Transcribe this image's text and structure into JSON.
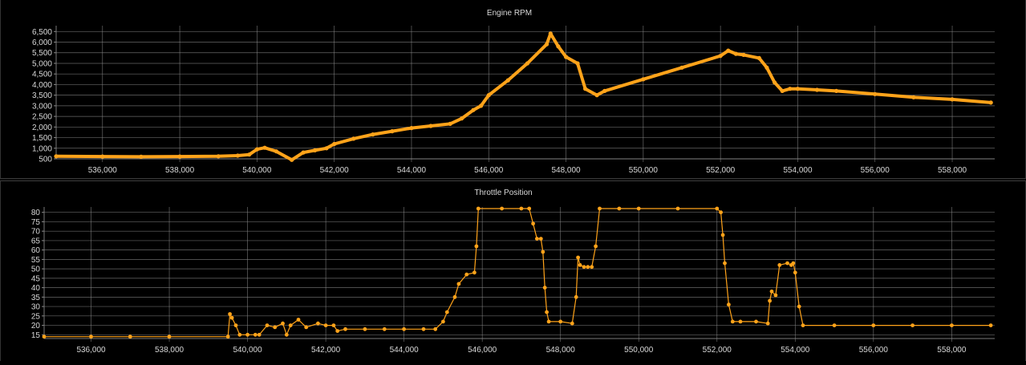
{
  "colors": {
    "background": "#000000",
    "grid": "#8a8a8a",
    "axis_text": "#d8d8d8",
    "series": "#ffa31a"
  },
  "chart_data": [
    {
      "type": "line",
      "title": "Engine RPM",
      "xlabel": "",
      "ylabel": "",
      "xlim": [
        534800,
        559100
      ],
      "ylim": [
        500,
        6700
      ],
      "grid": true,
      "x_ticks": [
        536000,
        538000,
        540000,
        542000,
        544000,
        546000,
        548000,
        550000,
        552000,
        554000,
        556000,
        558000
      ],
      "x_tick_labels": [
        "536,000",
        "538,000",
        "540,000",
        "542,000",
        "544,000",
        "546,000",
        "548,000",
        "550,000",
        "552,000",
        "554,000",
        "556,000",
        "558,000"
      ],
      "y_ticks": [
        500,
        1000,
        1500,
        2000,
        2500,
        3000,
        3500,
        4000,
        4500,
        5000,
        5500,
        6000,
        6500
      ],
      "y_tick_labels": [
        "500",
        "1,000",
        "1,500",
        "2,000",
        "2,500",
        "3,000",
        "3,500",
        "4,000",
        "4,500",
        "5,000",
        "5,500",
        "6,000",
        "6,500"
      ],
      "series": [
        {
          "x": [
            534800,
            536000,
            537000,
            538000,
            539000,
            539500,
            539800,
            540000,
            540200,
            540500,
            540900,
            541200,
            541500,
            541800,
            542000,
            542500,
            543000,
            543500,
            544000,
            544500,
            545000,
            545300,
            545600,
            545800,
            546000,
            546500,
            547000,
            547500,
            547600,
            547800,
            548000,
            548300,
            548500,
            548800,
            549000,
            550000,
            551000,
            552000,
            552200,
            552400,
            552600,
            553000,
            553200,
            553400,
            553600,
            553800,
            554000,
            554500,
            555000,
            556000,
            557000,
            558000,
            559000
          ],
          "y": [
            620,
            610,
            600,
            610,
            620,
            650,
            700,
            950,
            1020,
            850,
            450,
            800,
            900,
            1000,
            1200,
            1450,
            1650,
            1800,
            1950,
            2050,
            2150,
            2400,
            2800,
            3000,
            3500,
            4200,
            5000,
            5900,
            6400,
            5800,
            5300,
            5000,
            3800,
            3500,
            3700,
            4250,
            4800,
            5350,
            5600,
            5450,
            5400,
            5250,
            4800,
            4100,
            3700,
            3800,
            3800,
            3750,
            3700,
            3550,
            3400,
            3300,
            3150
          ]
        }
      ]
    },
    {
      "type": "line",
      "title": "Throttle Position",
      "xlabel": "",
      "ylabel": "",
      "xlim": [
        534800,
        559100
      ],
      "ylim": [
        13,
        82
      ],
      "grid": true,
      "x_ticks": [
        536000,
        538000,
        540000,
        542000,
        544000,
        546000,
        548000,
        550000,
        552000,
        554000,
        556000,
        558000
      ],
      "x_tick_labels": [
        "536,000",
        "538,000",
        "540,000",
        "542,000",
        "544,000",
        "546,000",
        "548,000",
        "550,000",
        "552,000",
        "554,000",
        "556,000",
        "558,000"
      ],
      "y_ticks": [
        15,
        20,
        25,
        30,
        35,
        40,
        45,
        50,
        55,
        60,
        65,
        70,
        75,
        80
      ],
      "y_tick_labels": [
        "15",
        "20",
        "25",
        "30",
        "35",
        "40",
        "45",
        "50",
        "55",
        "60",
        "65",
        "70",
        "75",
        "80"
      ],
      "series": [
        {
          "x": [
            534800,
            536000,
            537000,
            538000,
            539500,
            539550,
            539600,
            539700,
            539800,
            540000,
            540200,
            540300,
            540500,
            540700,
            540900,
            541000,
            541100,
            541300,
            541500,
            541800,
            542000,
            542200,
            542300,
            542500,
            543000,
            543500,
            544000,
            544500,
            544800,
            545000,
            545100,
            545300,
            545400,
            545600,
            545800,
            545850,
            545900,
            546500,
            547000,
            547200,
            547300,
            547400,
            547500,
            547550,
            547600,
            547650,
            547700,
            548000,
            548300,
            548400,
            548450,
            548500,
            548600,
            548700,
            548800,
            548900,
            549000,
            549500,
            550000,
            551000,
            552000,
            552100,
            552150,
            552200,
            552300,
            552400,
            552600,
            553000,
            553300,
            553350,
            553400,
            553500,
            553600,
            553800,
            553900,
            553950,
            554000,
            554100,
            554200,
            555000,
            556000,
            557000,
            558000,
            559000
          ],
          "y": [
            14,
            14,
            14,
            14,
            14,
            26,
            24,
            20,
            15,
            15,
            15,
            15,
            20,
            19,
            21,
            15,
            20,
            23,
            19,
            21,
            20,
            20,
            17,
            18,
            18,
            18,
            18,
            18,
            18,
            22,
            27,
            35,
            42,
            47,
            48,
            62,
            82,
            82,
            82,
            82,
            74,
            66,
            66,
            59,
            40,
            27,
            22,
            22,
            21,
            35,
            56,
            52,
            51,
            51,
            51,
            62,
            82,
            82,
            82,
            82,
            82,
            80,
            68,
            53,
            31,
            22,
            22,
            22,
            21,
            33,
            38,
            36,
            52,
            53,
            52,
            53,
            48,
            30,
            20,
            20,
            20,
            20,
            20,
            20
          ]
        }
      ]
    }
  ]
}
